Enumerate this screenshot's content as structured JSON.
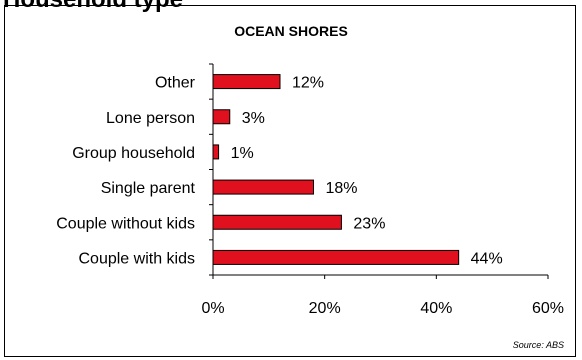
{
  "page": {
    "heading": "Household type"
  },
  "chart_data": {
    "type": "bar",
    "orientation": "horizontal",
    "title": "OCEAN SHORES",
    "categories": [
      "Other",
      "Lone person",
      "Group household",
      "Single parent",
      "Couple without kids",
      "Couple with kids"
    ],
    "values": [
      12,
      3,
      1,
      18,
      23,
      44
    ],
    "value_labels": [
      "12%",
      "3%",
      "1%",
      "18%",
      "23%",
      "44%"
    ],
    "xlim": [
      0,
      60
    ],
    "xticks": [
      0,
      20,
      40,
      60
    ],
    "xtick_labels": [
      "0%",
      "20%",
      "40%",
      "60%"
    ],
    "bar_color": "#e0101e",
    "grid": false,
    "legend": "none",
    "source": "Source: ABS"
  }
}
